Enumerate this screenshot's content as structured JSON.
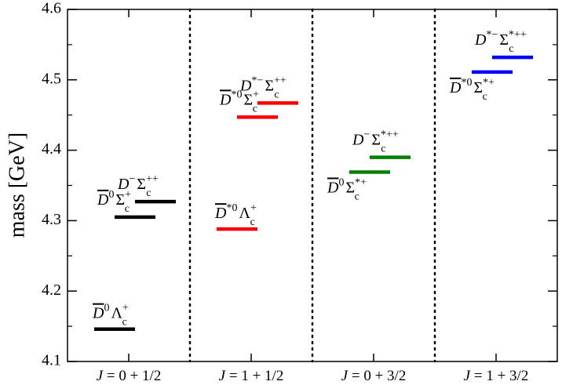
{
  "chart_data": {
    "type": "scatter",
    "ylabel": "mass [GeV]",
    "ylim": [
      4.1,
      4.6
    ],
    "yticks": [
      "4.1",
      "4.2",
      "4.3",
      "4.4",
      "4.5",
      "4.6"
    ],
    "groups": [
      {
        "label": "J = 0 + 1/2"
      },
      {
        "label": "J = 1 + 1/2"
      },
      {
        "label": "J = 0 + 3/2"
      },
      {
        "label": "J = 1 + 3/2"
      }
    ],
    "levels": [
      {
        "group": 0,
        "mass": 4.146,
        "color": "#000000",
        "meson": "D",
        "meson_bar": true,
        "meson_sup": "0",
        "baryon": "Λ",
        "baryon_sub": "c",
        "baryon_sup": "+"
      },
      {
        "group": 0,
        "mass": 4.305,
        "color": "#000000",
        "meson": "D",
        "meson_bar": true,
        "meson_sup": "0",
        "baryon": "Σ",
        "baryon_sub": "c",
        "baryon_sup": "+"
      },
      {
        "group": 0,
        "mass": 4.327,
        "color": "#000000",
        "meson": "D",
        "meson_bar": false,
        "meson_sup": "−",
        "baryon": "Σ",
        "baryon_sub": "c",
        "baryon_sup": "++"
      },
      {
        "group": 1,
        "mass": 4.288,
        "color": "#ff0000",
        "meson": "D",
        "meson_bar": true,
        "meson_sup": "*0",
        "baryon": "Λ",
        "baryon_sub": "c",
        "baryon_sup": "+"
      },
      {
        "group": 1,
        "mass": 4.447,
        "color": "#ff0000",
        "meson": "D",
        "meson_bar": true,
        "meson_sup": "*0",
        "baryon": "Σ",
        "baryon_sub": "c",
        "baryon_sup": "+"
      },
      {
        "group": 1,
        "mass": 4.467,
        "color": "#ff0000",
        "meson": "D",
        "meson_bar": false,
        "meson_sup": "*−",
        "baryon": "Σ",
        "baryon_sub": "c",
        "baryon_sup": "++"
      },
      {
        "group": 2,
        "mass": 4.369,
        "color": "#008000",
        "meson": "D",
        "meson_bar": true,
        "meson_sup": "0",
        "baryon": "Σ",
        "baryon_sub": "c",
        "baryon_sup": "*+"
      },
      {
        "group": 2,
        "mass": 4.39,
        "color": "#008000",
        "meson": "D",
        "meson_bar": false,
        "meson_sup": "−",
        "baryon": "Σ",
        "baryon_sub": "c",
        "baryon_sup": "*++"
      },
      {
        "group": 3,
        "mass": 4.511,
        "color": "#0000ff",
        "meson": "D",
        "meson_bar": true,
        "meson_sup": "*0",
        "baryon": "Σ",
        "baryon_sub": "c",
        "baryon_sup": "*+"
      },
      {
        "group": 3,
        "mass": 4.532,
        "color": "#0000ff",
        "meson": "D",
        "meson_bar": false,
        "meson_sup": "*−",
        "baryon": "Σ",
        "baryon_sub": "c",
        "baryon_sup": "*++"
      }
    ]
  }
}
